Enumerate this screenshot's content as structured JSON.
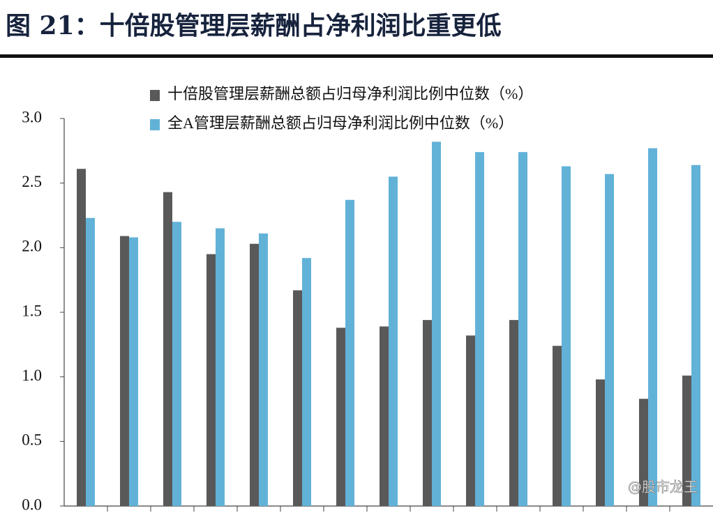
{
  "chart_data": {
    "type": "bar",
    "title": "图 21：十倍股管理层薪酬占净利润比重更低",
    "categories": [
      null,
      null,
      null,
      null,
      null,
      null,
      null,
      null,
      null,
      null,
      null,
      null,
      null,
      null,
      null
    ],
    "series": [
      {
        "name": "十倍股管理层薪酬总额占归母净利润比例中位数（%）",
        "color": "#595959",
        "values": [
          2.61,
          2.09,
          2.43,
          1.95,
          2.03,
          1.67,
          1.38,
          1.39,
          1.44,
          1.32,
          1.44,
          1.24,
          0.98,
          0.83,
          1.01
        ]
      },
      {
        "name": "全A管理层薪酬总额占归母净利润比例中位数（%）",
        "color": "#62b2d8",
        "values": [
          2.23,
          2.08,
          2.2,
          2.15,
          2.11,
          1.92,
          2.37,
          2.55,
          2.82,
          2.74,
          2.74,
          2.63,
          2.57,
          2.77,
          2.64
        ]
      }
    ],
    "ylim": [
      0,
      3
    ],
    "yticks": [
      {
        "value": 0,
        "label": "0.0"
      },
      0.5,
      {
        "value": 1,
        "label": "1.0"
      },
      1.5,
      {
        "value": 2,
        "label": "2.0"
      },
      2.5,
      {
        "value": 3,
        "label": "3.0"
      }
    ],
    "grid": false,
    "legend": "top-right",
    "watermark": "@股市龙王"
  }
}
